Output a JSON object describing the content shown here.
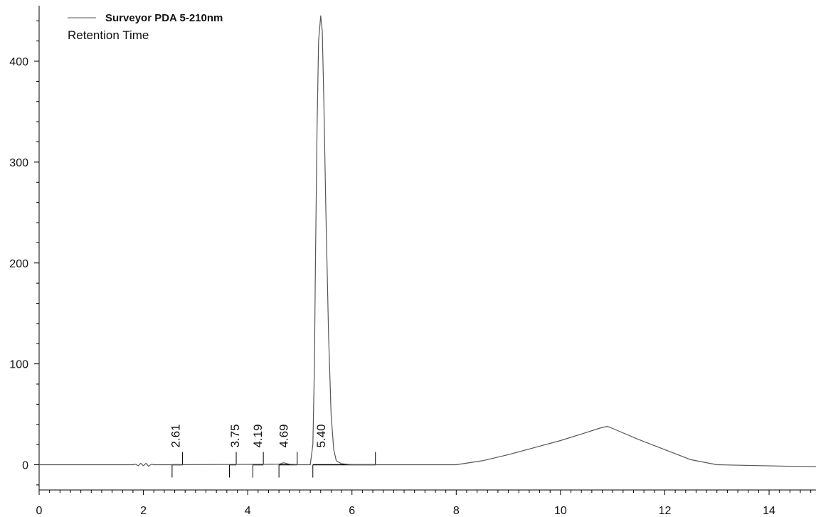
{
  "chart_data": {
    "type": "line",
    "title": "",
    "xlabel": "",
    "ylabel": "",
    "xlim": [
      0,
      14.9
    ],
    "ylim": [
      -25,
      455
    ],
    "x_ticks": [
      0,
      2,
      4,
      6,
      8,
      10,
      12,
      14
    ],
    "y_ticks": [
      0,
      100,
      200,
      300,
      400
    ],
    "x_minor_step": 0.2,
    "y_minor_step": 20,
    "grid": false,
    "legend": {
      "placement": "top-left",
      "series_name": "Surveyor PDA 5-210nm",
      "subtitle": "Retention Time"
    },
    "colors": {
      "trace": "#555555",
      "axis": "#000000",
      "marker": "#000000"
    },
    "series": [
      {
        "name": "Surveyor PDA 5-210nm",
        "points": [
          [
            0.0,
            0.0
          ],
          [
            1.8,
            0.0
          ],
          [
            1.85,
            0.5
          ],
          [
            1.9,
            -1.0
          ],
          [
            1.95,
            1.5
          ],
          [
            2.0,
            -1.0
          ],
          [
            2.05,
            1.5
          ],
          [
            2.1,
            -1.5
          ],
          [
            2.15,
            0.5
          ],
          [
            2.2,
            0.0
          ],
          [
            2.6,
            0.0
          ],
          [
            4.6,
            0.5
          ],
          [
            4.69,
            2.0
          ],
          [
            4.8,
            0.5
          ],
          [
            5.0,
            0.0
          ],
          [
            5.2,
            0.0
          ],
          [
            5.25,
            20.0
          ],
          [
            5.28,
            100.0
          ],
          [
            5.3,
            200.0
          ],
          [
            5.33,
            330.0
          ],
          [
            5.36,
            420.0
          ],
          [
            5.4,
            445.0
          ],
          [
            5.43,
            430.0
          ],
          [
            5.46,
            360.0
          ],
          [
            5.5,
            250.0
          ],
          [
            5.55,
            130.0
          ],
          [
            5.6,
            50.0
          ],
          [
            5.65,
            15.0
          ],
          [
            5.7,
            4.0
          ],
          [
            5.8,
            1.0
          ],
          [
            6.0,
            0.0
          ],
          [
            8.0,
            0.0
          ],
          [
            8.5,
            4.0
          ],
          [
            9.0,
            10.0
          ],
          [
            9.5,
            17.0
          ],
          [
            10.0,
            24.0
          ],
          [
            10.5,
            32.0
          ],
          [
            10.8,
            37.0
          ],
          [
            10.9,
            38.0
          ],
          [
            11.0,
            36.0
          ],
          [
            11.5,
            25.0
          ],
          [
            12.0,
            15.0
          ],
          [
            12.5,
            5.0
          ],
          [
            13.0,
            0.0
          ],
          [
            14.9,
            -2.0
          ]
        ]
      }
    ],
    "peaks": [
      {
        "label": "2.61",
        "rt": 2.61,
        "start": 2.55,
        "end": 2.75
      },
      {
        "label": "3.75",
        "rt": 3.75,
        "start": 3.65,
        "end": 3.78
      },
      {
        "label": "4.19",
        "rt": 4.19,
        "start": 4.1,
        "end": 4.3
      },
      {
        "label": "4.69",
        "rt": 4.69,
        "start": 4.6,
        "end": 4.95
      },
      {
        "label": "5.40",
        "rt": 5.4,
        "start": 5.25,
        "end": 6.45
      }
    ]
  }
}
